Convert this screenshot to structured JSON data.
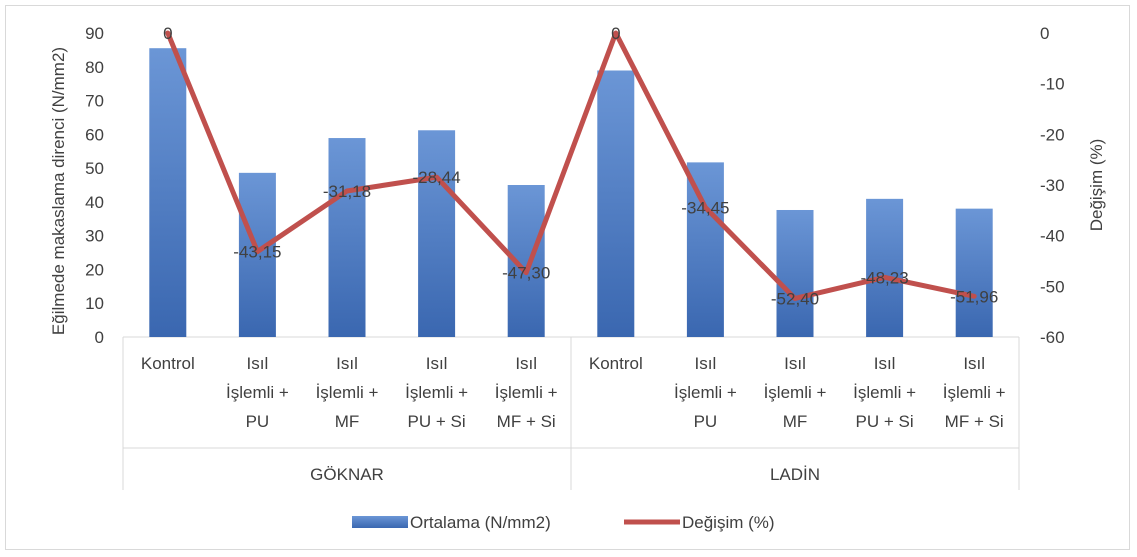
{
  "chart_data": {
    "type": "bar",
    "groups": [
      {
        "label": "GÖKNAR",
        "categories": [
          [
            "Kontrol"
          ],
          [
            "Isıl",
            "İşlemli +",
            "PU"
          ],
          [
            "Isıl",
            "İşlemli +",
            "MF"
          ],
          [
            "Isıl",
            "İşlemli +",
            "PU + Si"
          ],
          [
            "Isıl",
            "İşlemli +",
            "MF + Si"
          ]
        ]
      },
      {
        "label": "LADİN",
        "categories": [
          [
            "Kontrol"
          ],
          [
            "Isıl",
            "İşlemli +",
            "PU"
          ],
          [
            "Isıl",
            "İşlemli +",
            "MF"
          ],
          [
            "Isıl",
            "İşlemli +",
            "PU + Si"
          ],
          [
            "Isıl",
            "İşlemli +",
            "MF + Si"
          ]
        ]
      }
    ],
    "series": [
      {
        "name": "Ortalama (N/mm2)",
        "kind": "bar",
        "axis": "left",
        "color": "#4a7cc4",
        "values": [
          85.5,
          48.6,
          58.9,
          61.2,
          45.0,
          78.9,
          51.7,
          37.6,
          40.9,
          38.0
        ]
      },
      {
        "name": "Değişim (%)",
        "kind": "line",
        "axis": "right",
        "color": "#c0504d",
        "values": [
          0,
          -43.15,
          -31.18,
          -28.44,
          -47.3,
          0,
          -34.45,
          -52.4,
          -48.23,
          -51.96
        ],
        "labels": [
          "0",
          "-43,15",
          "-31,18",
          "-28,44",
          "-47,30",
          "0",
          "-34,45",
          "-52,40",
          "-48,23",
          "-51,96"
        ]
      }
    ],
    "y_left": {
      "label": "Eğilmede makaslama direnci (N/mm2)",
      "range": [
        0,
        90
      ],
      "ticks": [
        "0",
        "10",
        "20",
        "30",
        "40",
        "50",
        "60",
        "70",
        "80",
        "90"
      ]
    },
    "y_right": {
      "label": "Değişim (%)",
      "range": [
        -60,
        0
      ],
      "ticks": [
        "0",
        "-10",
        "-20",
        "-30",
        "-40",
        "-50",
        "-60"
      ]
    },
    "grid": false,
    "legend": "bottom"
  }
}
